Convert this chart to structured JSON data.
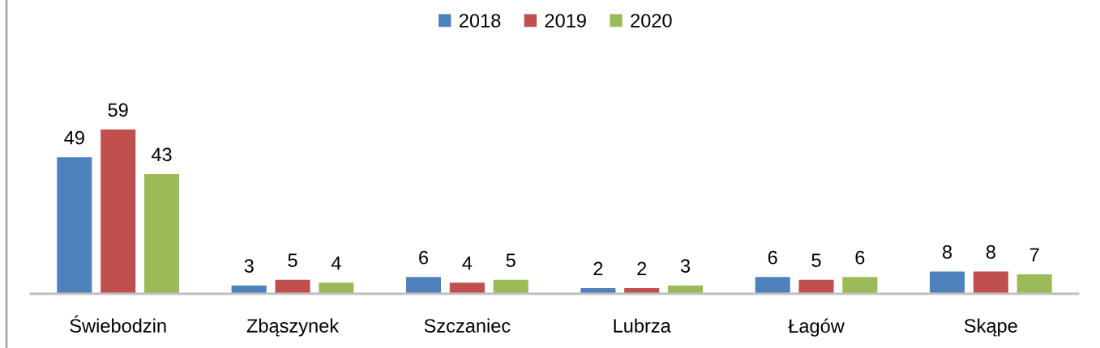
{
  "chart_data": {
    "type": "bar",
    "categories": [
      "Świebodzin",
      "Zbąszynek",
      "Szczaniec",
      "Lubrza",
      "Łagów",
      "Skąpe"
    ],
    "series": [
      {
        "name": "2018",
        "color": "#4f81bd",
        "values": [
          49,
          3,
          6,
          2,
          6,
          8
        ]
      },
      {
        "name": "2019",
        "color": "#c0504d",
        "values": [
          59,
          5,
          4,
          2,
          5,
          8
        ]
      },
      {
        "name": "2020",
        "color": "#9bbb59",
        "values": [
          43,
          4,
          5,
          3,
          6,
          7
        ]
      }
    ],
    "data_labels": true,
    "legend": "top",
    "tick_labels": "x"
  }
}
